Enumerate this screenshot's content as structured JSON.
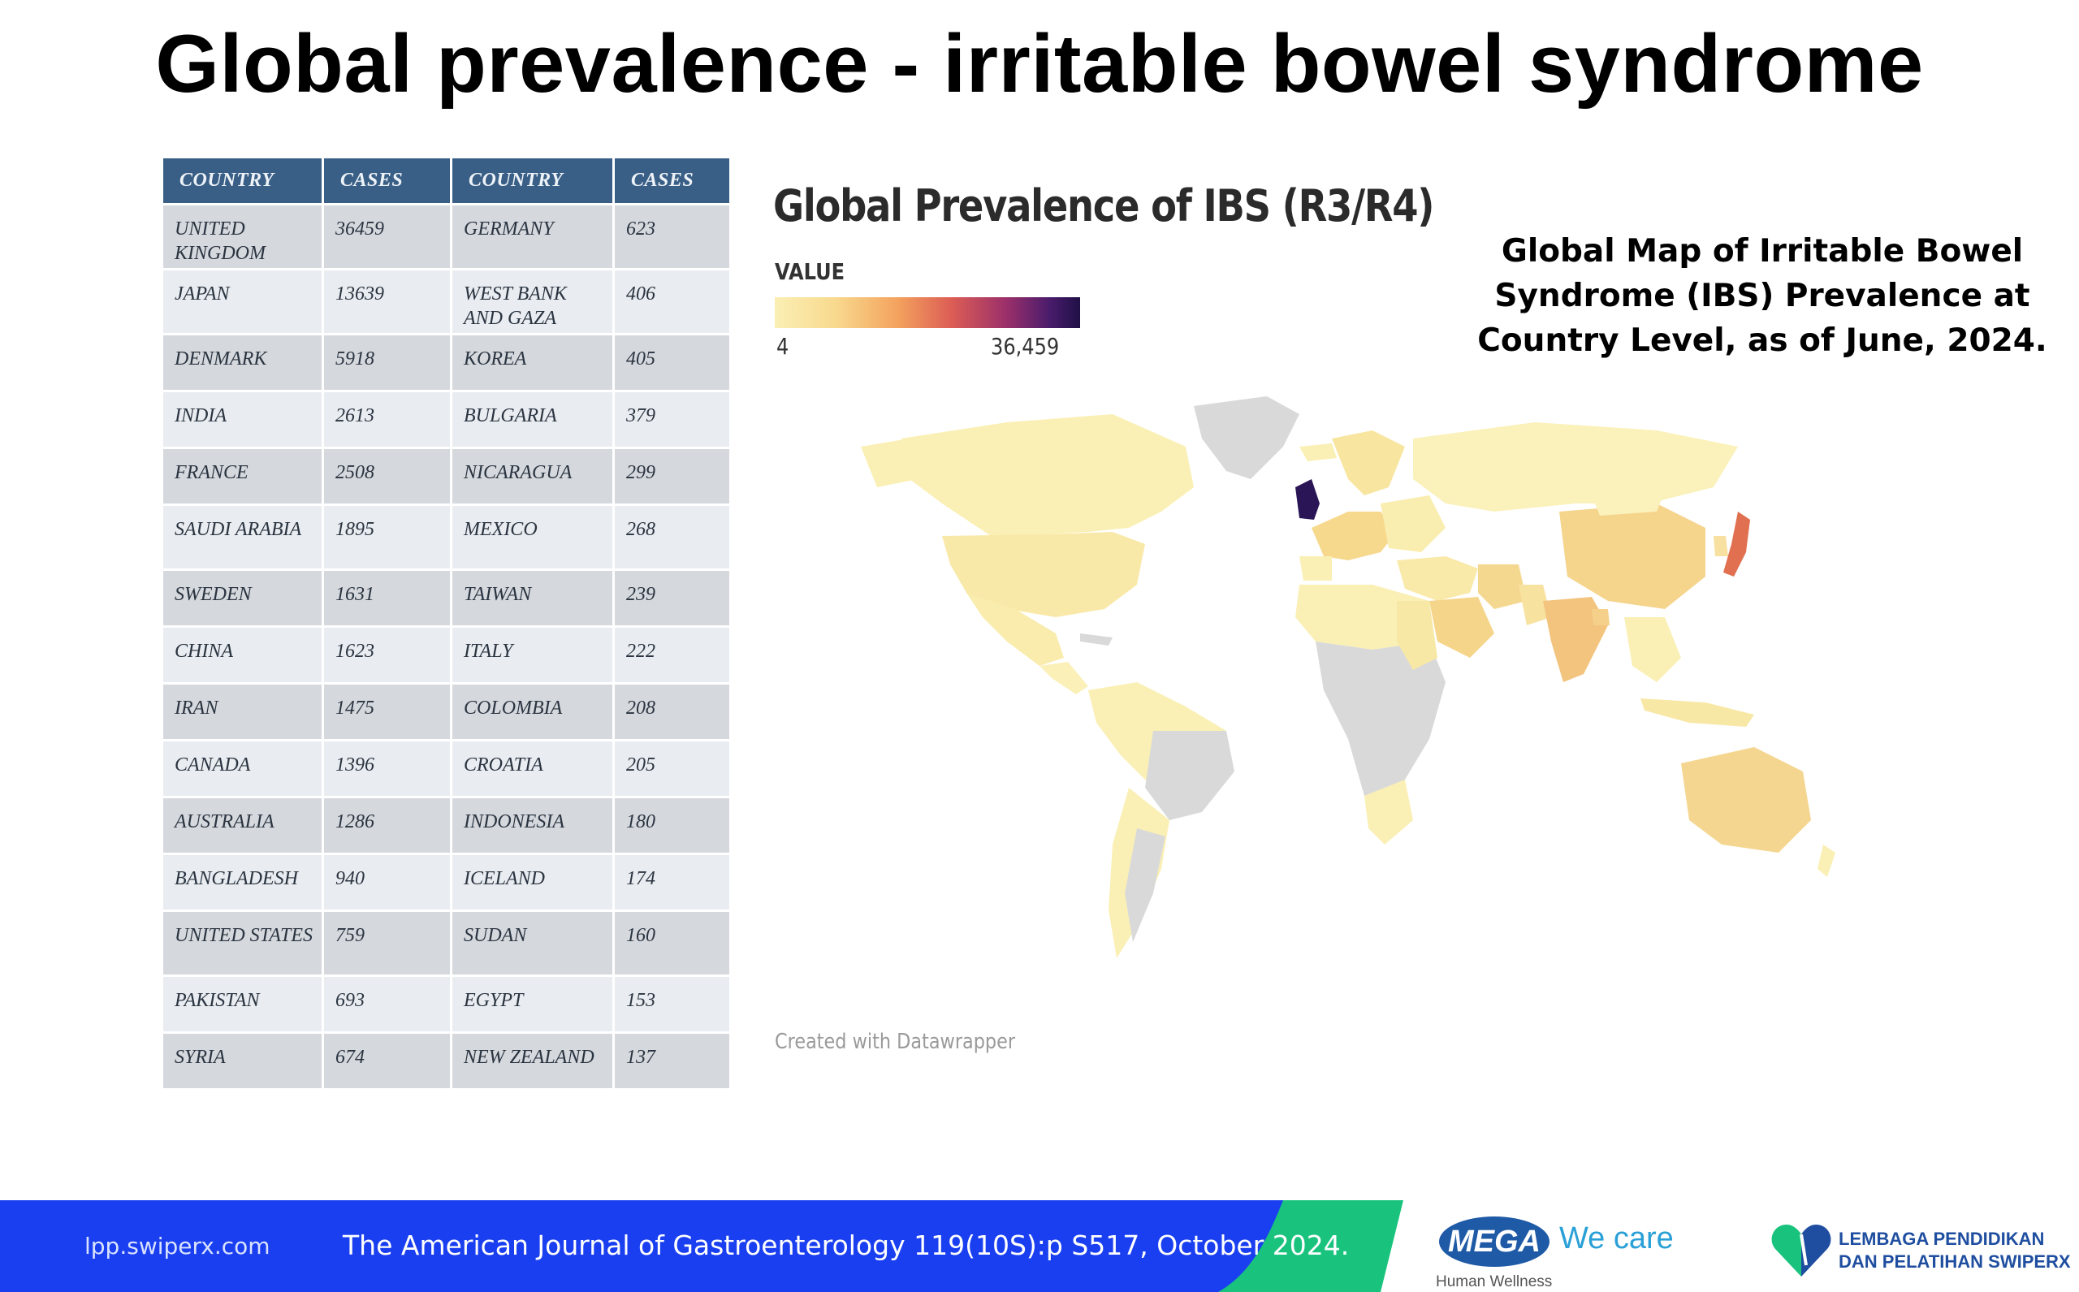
{
  "slide": {
    "title": "Global prevalence - irritable bowel syndrome"
  },
  "table": {
    "headers": [
      "COUNTRY",
      "CASES",
      "COUNTRY",
      "CASES"
    ],
    "rows": [
      {
        "country1": "UNITED KINGDOM",
        "cases1": "36459",
        "country2": "GERMANY",
        "cases2": "623"
      },
      {
        "country1": "JAPAN",
        "cases1": "13639",
        "country2": "WEST BANK AND GAZA",
        "cases2": "406"
      },
      {
        "country1": "DENMARK",
        "cases1": "5918",
        "country2": "KOREA",
        "cases2": "405"
      },
      {
        "country1": "INDIA",
        "cases1": "2613",
        "country2": "BULGARIA",
        "cases2": "379"
      },
      {
        "country1": "FRANCE",
        "cases1": "2508",
        "country2": "NICARAGUA",
        "cases2": "299"
      },
      {
        "country1": "SAUDI ARABIA",
        "cases1": "1895",
        "country2": "MEXICO",
        "cases2": "268"
      },
      {
        "country1": "SWEDEN",
        "cases1": "1631",
        "country2": "TAIWAN",
        "cases2": "239"
      },
      {
        "country1": "CHINA",
        "cases1": "1623",
        "country2": "ITALY",
        "cases2": "222"
      },
      {
        "country1": "IRAN",
        "cases1": "1475",
        "country2": "COLOMBIA",
        "cases2": "208"
      },
      {
        "country1": "CANADA",
        "cases1": "1396",
        "country2": "CROATIA",
        "cases2": "205"
      },
      {
        "country1": "AUSTRALIA",
        "cases1": "1286",
        "country2": "INDONESIA",
        "cases2": "180"
      },
      {
        "country1": "BANGLADESH",
        "cases1": "940",
        "country2": "ICELAND",
        "cases2": "174"
      },
      {
        "country1": "UNITED STATES",
        "cases1": "759",
        "country2": "SUDAN",
        "cases2": "160"
      },
      {
        "country1": "PAKISTAN",
        "cases1": "693",
        "country2": "EGYPT",
        "cases2": "153"
      },
      {
        "country1": "SYRIA",
        "cases1": "674",
        "country2": "NEW ZEALAND",
        "cases2": "137"
      }
    ]
  },
  "map": {
    "title": "Global Prevalence of IBS (R3/R4)",
    "legend_label": "VALUE",
    "legend_min": "4",
    "legend_max": "36,459",
    "caption": "Global Map of Irritable Bowel Syndrome (IBS) Prevalence at Country Level, as of June, 2024.",
    "credit": "Created with Datawrapper",
    "colors": {
      "low": "#fbefb4",
      "high": "#1f1046",
      "no_data": "#d9d9d9",
      "uk": "#2a1657",
      "japan": "#e0704f"
    }
  },
  "footer": {
    "site": "lpp.swiperx.com",
    "citation": "The American Journal of Gastroenterology 119(10S):p S517, October 2024.",
    "mega_word": "MEGA",
    "we_care": "We care",
    "human_wellness": "Human Wellness",
    "lpp_line1": "LEMBAGA PENDIDIKAN",
    "lpp_line2": "DAN PELATIHAN SWIPERX",
    "colors": {
      "band": "#1a3ff0",
      "accent": "#19c37d"
    }
  }
}
